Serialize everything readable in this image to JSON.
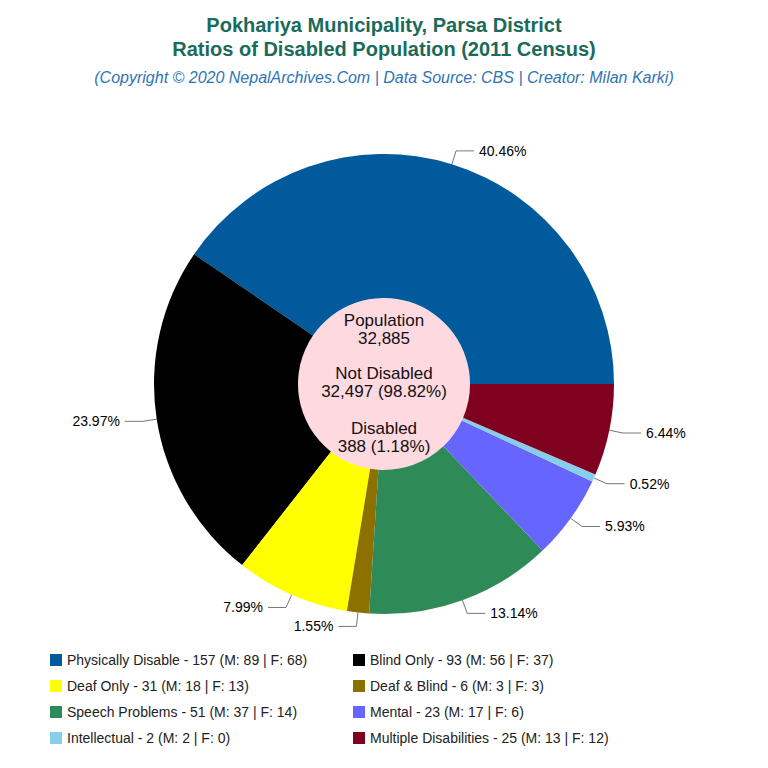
{
  "chart_data": {
    "type": "pie",
    "title": "Pokhariya Municipality, Parsa District\nRatios of Disabled Population (2011 Census)",
    "subtitle": "(Copyright © 2020 NepalArchives.Com | Data Source: CBS | Creator: Milan Karki)",
    "categories": [
      "Physically Disable - 157 (M: 89 | F: 68)",
      "Blind Only - 93 (M: 56 | F: 37)",
      "Deaf Only - 31 (M: 18 | F: 13)",
      "Deaf & Blind - 6 (M: 3 | F: 3)",
      "Speech Problems - 51 (M: 37 | F: 14)",
      "Mental - 23 (M: 17 | F: 6)",
      "Intellectual - 2 (M: 2 | F: 0)",
      "Multiple Disabilities - 25 (M: 13 | F: 12)"
    ],
    "values": [
      40.46,
      23.97,
      7.99,
      1.55,
      13.14,
      5.93,
      0.52,
      6.44
    ],
    "value_labels": [
      "40.46%",
      "23.97%",
      "7.99%",
      "1.55%",
      "13.14%",
      "5.93%",
      "0.52%",
      "6.44%"
    ],
    "colors": [
      "#005a9c",
      "#000000",
      "#ffff00",
      "#8c7000",
      "#2e8b57",
      "#6666ff",
      "#87ceeb",
      "#800020"
    ],
    "data_labels": true,
    "legend": "bottom",
    "annotations": [
      "Population",
      "32,885",
      "Not Disabled",
      "32,497 (98.82%)",
      "Disabled",
      "388 (1.18%)"
    ]
  }
}
